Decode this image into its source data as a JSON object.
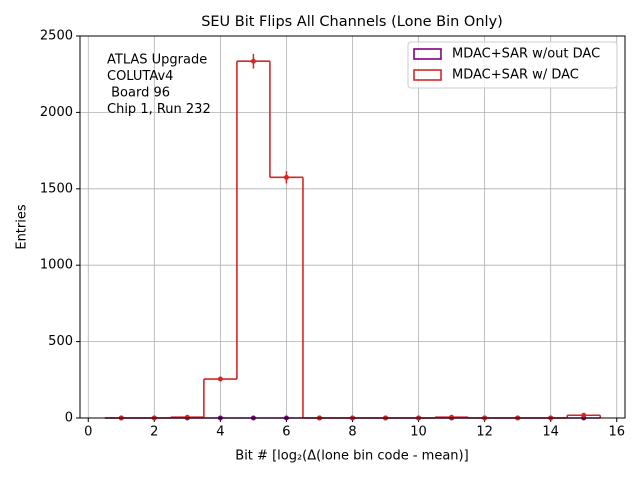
{
  "chart_data": {
    "type": "histogram",
    "title": "SEU Bit Flips All Channels (Lone Bin Only)",
    "x_label": "Bit # [log₂(Δ(lone bin code - mean)]",
    "y_label": "Entries",
    "annotation": [
      "ATLAS Upgrade",
      "COLUTAv4",
      " Board 96",
      "Chip 1, Run 232"
    ],
    "bins": [
      0.5,
      1.5,
      2.5,
      3.5,
      4.5,
      5.5,
      6.5,
      7.5,
      8.5,
      9.5,
      10.5,
      11.5,
      12.5,
      13.5,
      14.5,
      15.5
    ],
    "series": [
      {
        "name": "MDAC+SAR w/out DAC",
        "color": "#800080",
        "values": [
          0,
          0,
          0,
          0,
          0,
          0,
          0,
          0,
          0,
          0,
          0,
          0,
          0,
          0,
          0
        ],
        "errors": [
          0,
          0,
          0,
          0,
          0,
          0,
          0,
          0,
          0,
          0,
          0,
          0,
          0,
          0,
          0
        ]
      },
      {
        "name": "MDAC+SAR w/ DAC",
        "color": "#d62728",
        "values": [
          0,
          0,
          5,
          255,
          2335,
          1575,
          0,
          0,
          0,
          0,
          5,
          0,
          0,
          0,
          18
        ],
        "errors": [
          0,
          0,
          2,
          16,
          48,
          40,
          0,
          0,
          0,
          0,
          2,
          0,
          0,
          0,
          4
        ]
      }
    ],
    "xlim": [
      -0.25,
      16.25
    ],
    "xticks": [
      0,
      2,
      4,
      6,
      8,
      10,
      12,
      14,
      16
    ],
    "ylim": [
      0,
      2500
    ],
    "yticks": [
      0,
      500,
      1000,
      1500,
      2000,
      2500
    ],
    "grid": true,
    "legend": "upper right"
  }
}
